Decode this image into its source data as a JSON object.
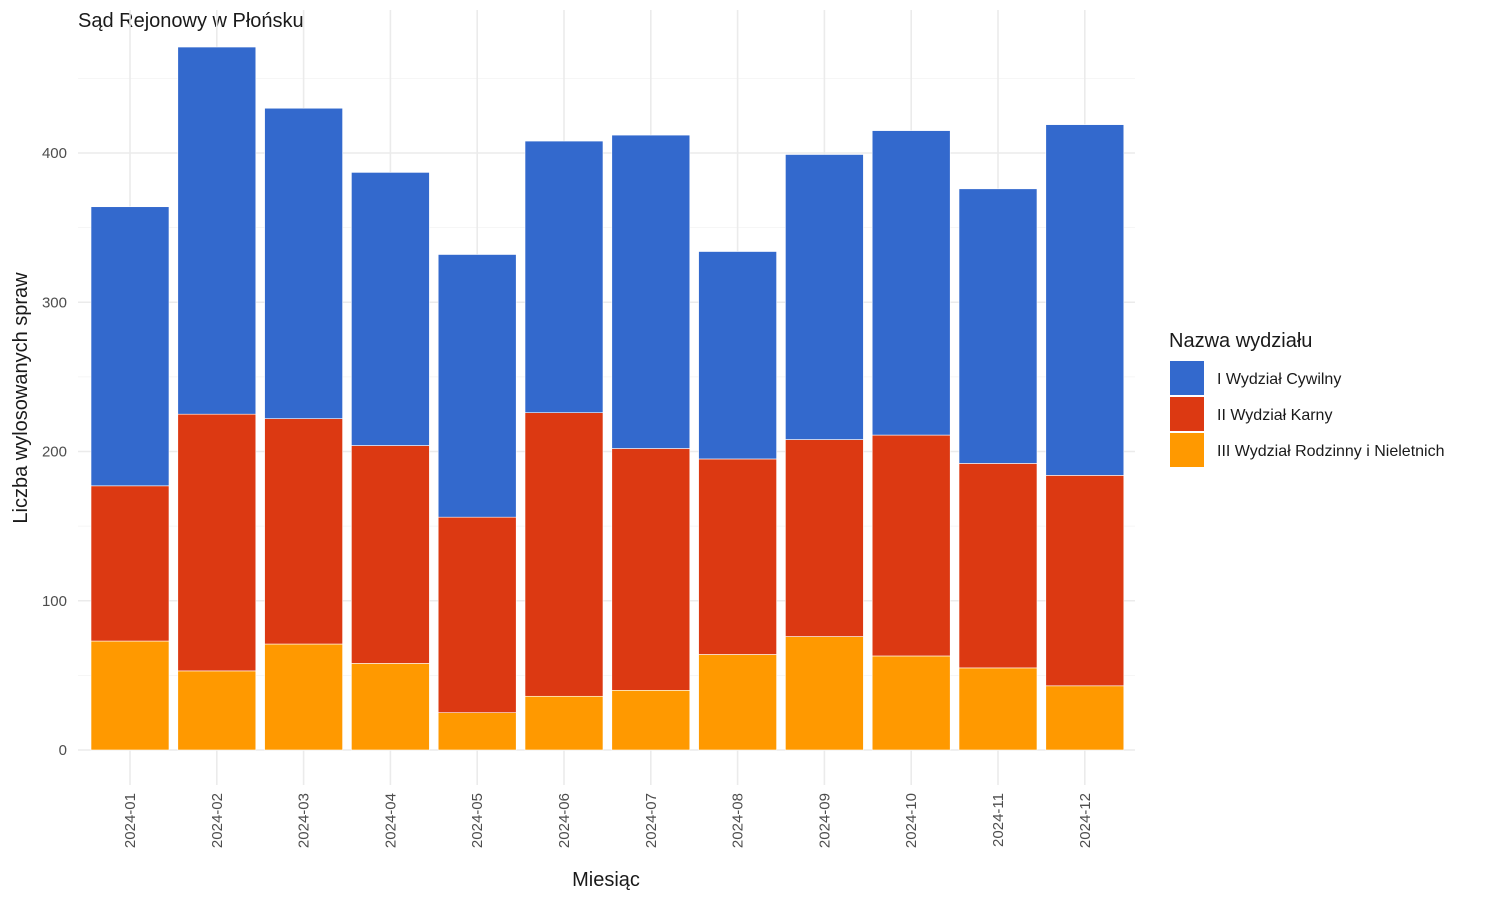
{
  "chart_data": {
    "type": "bar",
    "stacked": true,
    "title": "Sąd Rejonowy w Płońsku",
    "xlabel": "Miesiąc",
    "ylabel": "Liczba wylosowanych spraw",
    "ylim": [
      0,
      480
    ],
    "yticks": [
      0,
      100,
      200,
      300,
      400
    ],
    "grid": true,
    "legend_title": "Nazwa wydziału",
    "legend_position": "right",
    "categories": [
      "2024-01",
      "2024-02",
      "2024-03",
      "2024-04",
      "2024-05",
      "2024-06",
      "2024-07",
      "2024-08",
      "2024-09",
      "2024-10",
      "2024-11",
      "2024-12"
    ],
    "series": [
      {
        "name": "I Wydział Cywilny",
        "color": "#3369CD",
        "values": [
          187,
          246,
          208,
          183,
          176,
          182,
          210,
          139,
          191,
          204,
          184,
          235
        ]
      },
      {
        "name": "II Wydział Karny",
        "color": "#DC3912",
        "values": [
          104,
          172,
          151,
          146,
          131,
          190,
          162,
          131,
          132,
          148,
          137,
          141
        ]
      },
      {
        "name": "III Wydział Rodzinny i Nieletnich",
        "color": "#FF9900",
        "values": [
          73,
          53,
          71,
          58,
          25,
          36,
          40,
          64,
          76,
          63,
          55,
          43
        ]
      }
    ]
  }
}
